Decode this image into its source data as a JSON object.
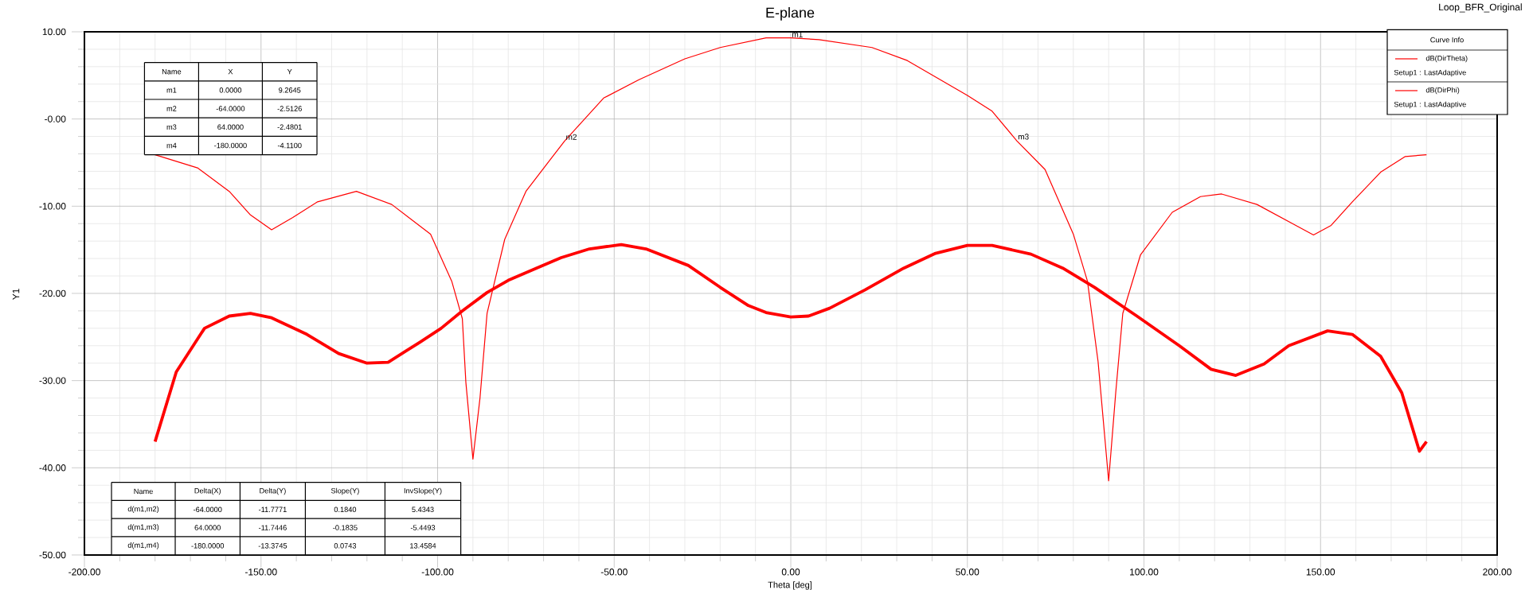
{
  "chart_data": {
    "type": "line",
    "title": "E-plane",
    "xlabel": "Theta [deg]",
    "ylabel": "Y1",
    "legend_title": "Curve Info",
    "xlim": [
      -200,
      200
    ],
    "ylim": [
      -50,
      10
    ],
    "xticks": [
      {
        "value": -200,
        "label": "-200.00"
      },
      {
        "value": -150,
        "label": "-150.00"
      },
      {
        "value": -100,
        "label": "-100.00"
      },
      {
        "value": -50,
        "label": "-50.00"
      },
      {
        "value": 0,
        "label": "0.00"
      },
      {
        "value": 50,
        "label": "50.00"
      },
      {
        "value": 100,
        "label": "100.00"
      },
      {
        "value": 150,
        "label": "150.00"
      },
      {
        "value": 200,
        "label": "200.00"
      }
    ],
    "yticks": [
      {
        "value": -50,
        "label": "-50.00"
      },
      {
        "value": -40,
        "label": "-40.00"
      },
      {
        "value": -30,
        "label": "-30.00"
      },
      {
        "value": -20,
        "label": "-20.00"
      },
      {
        "value": -10,
        "label": "-10.00"
      },
      {
        "value": 0,
        "label": "-0.00"
      },
      {
        "value": 10,
        "label": "10.00"
      }
    ],
    "grid": true,
    "legend": "top right",
    "marker": "none",
    "line_style": "solid",
    "series": [
      {
        "name": "dB(DirTheta)",
        "color": "#ff0000",
        "x": [
          -180,
          -168,
          -159,
          -153,
          -147,
          -141,
          -134,
          -123,
          -113,
          -102,
          -96,
          -93,
          -92,
          -90,
          -88,
          -86,
          -81,
          -75,
          -68,
          -64,
          -53,
          -43,
          -30,
          -20,
          -7,
          0,
          8,
          23,
          33,
          50,
          57,
          64,
          72,
          80,
          84,
          87,
          90,
          92,
          94,
          99,
          108,
          116,
          122,
          132,
          143,
          148,
          153,
          159,
          167,
          174,
          180
        ],
        "values": [
          -4.1,
          -5.6,
          -8.3,
          -11.0,
          -12.7,
          -11.3,
          -9.5,
          -8.3,
          -9.8,
          -13.2,
          -18.6,
          -22.9,
          -30.2,
          -39.0,
          -32.0,
          -22.3,
          -13.8,
          -8.3,
          -4.6,
          -2.5,
          2.4,
          4.5,
          6.9,
          8.2,
          9.3,
          9.3,
          9.1,
          8.2,
          6.7,
          2.7,
          0.9,
          -2.5,
          -5.8,
          -13.2,
          -18.6,
          -27.8,
          -41.5,
          -31.4,
          -22.3,
          -15.6,
          -10.7,
          -8.9,
          -8.6,
          -9.8,
          -12.2,
          -13.3,
          -12.2,
          -9.5,
          -6.1,
          -4.3,
          -4.1
        ]
      },
      {
        "name": "dB(DirPhi)",
        "color": "#ff0000",
        "x": [
          -180,
          -174,
          -166,
          -159,
          -153,
          -147,
          -137,
          -128,
          -120,
          -114,
          -105,
          -99,
          -93,
          -86,
          -80,
          -72,
          -65,
          -57,
          -48,
          -41,
          -29,
          -20,
          -12,
          -7,
          0,
          5,
          11,
          21,
          32,
          41,
          50,
          57,
          68,
          77,
          86,
          98,
          110,
          119,
          126,
          134,
          141,
          152,
          159,
          167,
          173,
          178,
          180
        ],
        "values": [
          -37.0,
          -29.0,
          -24.0,
          -22.6,
          -22.3,
          -22.8,
          -24.7,
          -26.9,
          -28.0,
          -27.9,
          -25.6,
          -24.0,
          -22.0,
          -19.9,
          -18.5,
          -17.1,
          -15.9,
          -14.9,
          -14.4,
          -14.9,
          -16.8,
          -19.3,
          -21.4,
          -22.2,
          -22.7,
          -22.6,
          -21.7,
          -19.6,
          -17.1,
          -15.4,
          -14.5,
          -14.5,
          -15.5,
          -17.1,
          -19.3,
          -22.6,
          -26.0,
          -28.7,
          -29.4,
          -28.1,
          -26.0,
          -24.3,
          -24.7,
          -27.2,
          -31.4,
          -38.1,
          -37.0
        ]
      }
    ],
    "annotations": [
      "Loop_BFR_Original",
      "Setup1 : LastAdaptive",
      "Setup1 : LastAdaptive",
      "Name",
      "X",
      "Y",
      "m1",
      "0.0000",
      "9.2645",
      "m2",
      "-64.0000",
      "-2.5126",
      "m3",
      "64.0000",
      "-2.4801",
      "m4",
      "-180.0000",
      "-4.1100",
      "Name",
      "Delta(X)",
      "Delta(Y)",
      "Slope(Y)",
      "InvSlope(Y)",
      "d(m1,m2)",
      "-64.0000",
      "-11.7771",
      "0.1840",
      "5.4343",
      "d(m1,m3)",
      "64.0000",
      "-11.7446",
      "-0.1835",
      "-5.4493",
      "d(m1,m4)",
      "-180.0000",
      "-13.3745",
      "0.0743",
      "13.4584",
      {
        "text": "m1",
        "x": 0,
        "y": 9.2645
      },
      {
        "text": "m2",
        "x": -64,
        "y": -2.5126
      },
      {
        "text": "m3",
        "x": 64,
        "y": -2.4801
      }
    ]
  }
}
